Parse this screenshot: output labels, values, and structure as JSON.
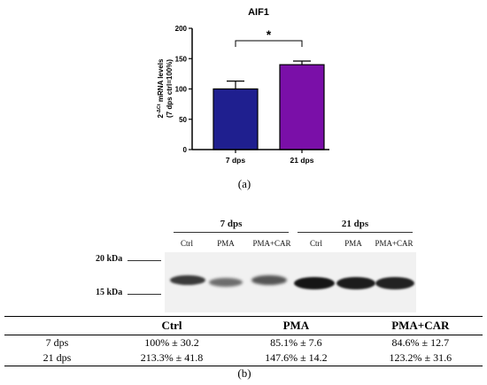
{
  "chart_data": {
    "type": "bar",
    "title": "AIF1",
    "ylabel_line1_base": "2",
    "ylabel_line1_sup": "-ΔCt",
    "ylabel_line1_rest": " mRNA levels",
    "ylabel_line2": "(7 dps ctrl=100%)",
    "categories": [
      "7 dps",
      "21 dps"
    ],
    "values": [
      100,
      140
    ],
    "errors": [
      13,
      6
    ],
    "colors": [
      "#1f1f8f",
      "#7a0fa8"
    ],
    "ylim": [
      0,
      200
    ],
    "yticks": [
      0,
      50,
      100,
      150,
      200
    ],
    "significance": "*"
  },
  "captions": {
    "a": "(a)",
    "b": "(b)"
  },
  "blot": {
    "groups": [
      "7 dps",
      "21 dps"
    ],
    "lanes": [
      "Ctrl",
      "PMA",
      "PMA+CAR",
      "Ctrl",
      "PMA",
      "PMA+CAR"
    ],
    "markers": [
      "20 kDa",
      "15 kDa"
    ]
  },
  "table": {
    "headers": [
      "",
      "Ctrl",
      "PMA",
      "PMA+CAR"
    ],
    "rows": [
      [
        "7 dps",
        "100% ± 30.2",
        "85.1% ± 7.6",
        "84.6% ± 12.7"
      ],
      [
        "21 dps",
        "213.3% ± 41.8",
        "147.6% ± 14.2",
        "123.2% ± 31.6"
      ]
    ]
  }
}
